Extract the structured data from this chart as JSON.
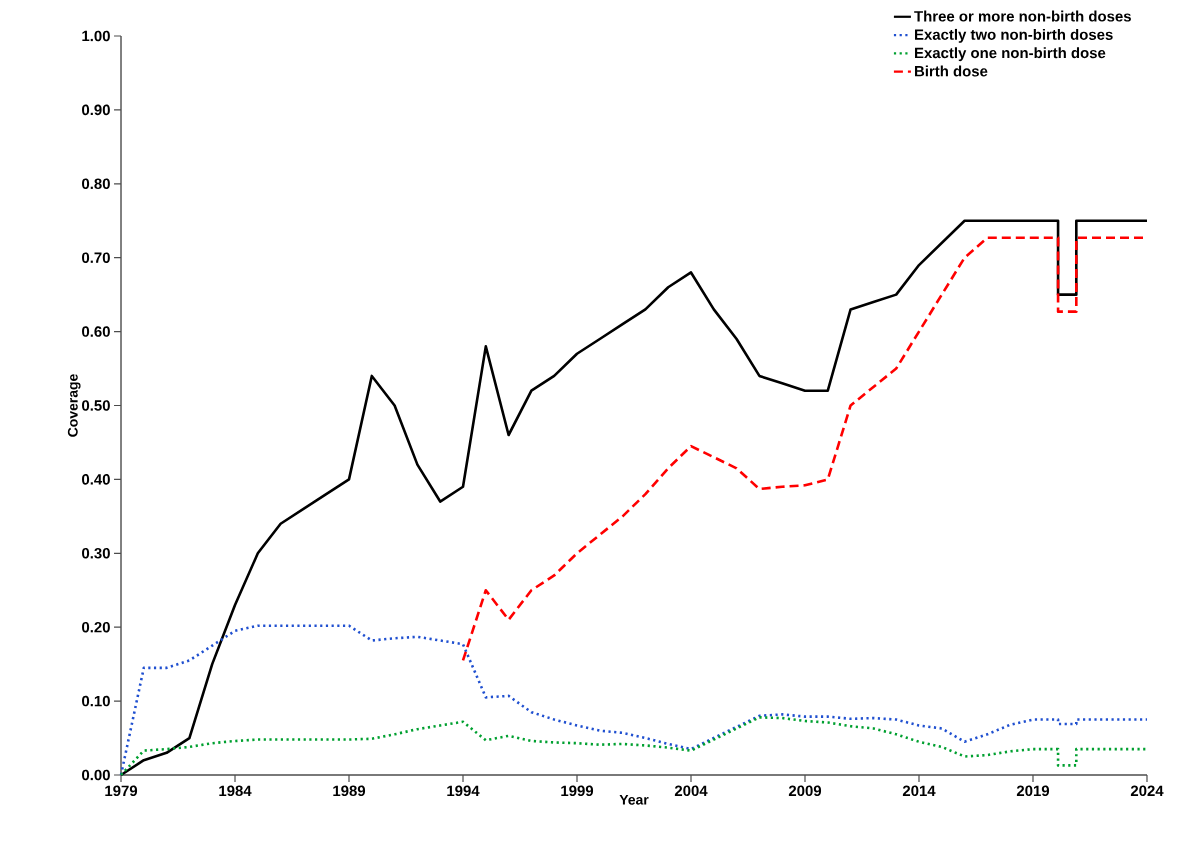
{
  "chart_data": {
    "type": "line",
    "xlabel": "Year",
    "ylabel": "Coverage",
    "xlim": [
      1979,
      2024
    ],
    "xticks": [
      1979,
      1984,
      1989,
      1994,
      1999,
      2004,
      2009,
      2014,
      2019,
      2024
    ],
    "ylim": [
      0,
      1
    ],
    "yticks": [
      {
        "value": 0,
        "label": "0.00"
      },
      {
        "value": 0.1,
        "label": "0.10"
      },
      {
        "value": 0.2,
        "label": "0.20"
      },
      {
        "value": 0.3,
        "label": "0.30"
      },
      {
        "value": 0.4,
        "label": "0.40"
      },
      {
        "value": 0.5,
        "label": "0.50"
      },
      {
        "value": 0.6,
        "label": "0.60"
      },
      {
        "value": 0.7,
        "label": "0.70"
      },
      {
        "value": 0.8,
        "label": "0.80"
      },
      {
        "value": 0.9,
        "label": "0.90"
      },
      {
        "value": 1,
        "label": "1.00"
      }
    ],
    "grid": false,
    "legend": "top right",
    "marker": "none",
    "series": [
      {
        "name": "Three or more non-birth doses",
        "color": "#000000",
        "line_style": "solid",
        "x": [
          1979,
          1980,
          1981,
          1982,
          1983,
          1984,
          1985,
          1986,
          1987,
          1988,
          1989,
          1990,
          1991,
          1992,
          1993,
          1994,
          1995,
          1996,
          1997,
          1998,
          1999,
          2000,
          2001,
          2002,
          2003,
          2004,
          2005,
          2006,
          2007,
          2008,
          2009,
          2010,
          2011,
          2012,
          2013,
          2014,
          2015,
          2016,
          2017,
          2018,
          2019,
          2020.1,
          2020.1,
          2020.9,
          2020.9,
          2022,
          2023,
          2024
        ],
        "values": [
          0,
          0.02,
          0.03,
          0.05,
          0.15,
          0.23,
          0.3,
          0.34,
          0.36,
          0.38,
          0.4,
          0.54,
          0.5,
          0.42,
          0.37,
          0.39,
          0.58,
          0.46,
          0.52,
          0.54,
          0.57,
          0.59,
          0.61,
          0.63,
          0.66,
          0.68,
          0.63,
          0.59,
          0.54,
          0.53,
          0.52,
          0.52,
          0.63,
          0.64,
          0.65,
          0.69,
          0.72,
          0.75,
          0.75,
          0.75,
          0.75,
          0.75,
          0.65,
          0.65,
          0.75,
          0.75,
          0.75,
          0.75
        ]
      },
      {
        "name": "Exactly two non-birth doses",
        "color": "#2050d0",
        "line_style": "dotted",
        "x": [
          1979,
          1980,
          1981,
          1982,
          1983,
          1984,
          1985,
          1986,
          1987,
          1988,
          1989,
          1990,
          1991,
          1992,
          1993,
          1994,
          1995,
          1996,
          1997,
          1998,
          1999,
          2000,
          2001,
          2002,
          2003,
          2004,
          2005,
          2006,
          2007,
          2008,
          2009,
          2010,
          2011,
          2012,
          2013,
          2014,
          2015,
          2016,
          2017,
          2018,
          2019,
          2020.1,
          2020.1,
          2020.9,
          2020.9,
          2022,
          2023,
          2024
        ],
        "values": [
          0,
          0.145,
          0.145,
          0.155,
          0.175,
          0.195,
          0.202,
          0.202,
          0.202,
          0.202,
          0.202,
          0.182,
          0.185,
          0.187,
          0.182,
          0.177,
          0.105,
          0.107,
          0.085,
          0.075,
          0.067,
          0.06,
          0.057,
          0.05,
          0.042,
          0.035,
          0.05,
          0.065,
          0.08,
          0.082,
          0.079,
          0.079,
          0.076,
          0.077,
          0.075,
          0.067,
          0.063,
          0.045,
          0.055,
          0.068,
          0.075,
          0.075,
          0.069,
          0.069,
          0.075,
          0.075,
          0.075,
          0.075
        ]
      },
      {
        "name": "Exactly one non-birth dose",
        "color": "#00a030",
        "line_style": "dotted",
        "x": [
          1979,
          1980,
          1981,
          1982,
          1983,
          1984,
          1985,
          1986,
          1987,
          1988,
          1989,
          1990,
          1991,
          1992,
          1993,
          1994,
          1995,
          1996,
          1997,
          1998,
          1999,
          2000,
          2001,
          2002,
          2003,
          2004,
          2005,
          2006,
          2007,
          2008,
          2009,
          2010,
          2011,
          2012,
          2013,
          2014,
          2015,
          2016,
          2017,
          2018,
          2019,
          2020.1,
          2020.1,
          2020.9,
          2020.9,
          2022,
          2023,
          2024
        ],
        "values": [
          0,
          0.033,
          0.035,
          0.038,
          0.043,
          0.046,
          0.048,
          0.048,
          0.048,
          0.048,
          0.048,
          0.049,
          0.055,
          0.062,
          0.067,
          0.072,
          0.047,
          0.053,
          0.046,
          0.044,
          0.043,
          0.041,
          0.042,
          0.04,
          0.037,
          0.033,
          0.048,
          0.063,
          0.078,
          0.077,
          0.073,
          0.071,
          0.066,
          0.063,
          0.055,
          0.045,
          0.038,
          0.025,
          0.027,
          0.032,
          0.035,
          0.035,
          0.013,
          0.013,
          0.035,
          0.035,
          0.035,
          0.035
        ]
      },
      {
        "name": "Birth dose",
        "color": "#ff0000",
        "line_style": "dashed",
        "x": [
          1994,
          1995,
          1996,
          1997,
          1998,
          1999,
          2000,
          2001,
          2002,
          2003,
          2004,
          2005,
          2006,
          2007,
          2008,
          2009,
          2010,
          2011,
          2012,
          2013,
          2014,
          2015,
          2016,
          2017,
          2018,
          2019,
          2020.1,
          2020.1,
          2020.9,
          2020.9,
          2022,
          2023,
          2024
        ],
        "values": [
          0.155,
          0.25,
          0.21,
          0.25,
          0.27,
          0.3,
          0.325,
          0.35,
          0.38,
          0.415,
          0.445,
          0.43,
          0.415,
          0.387,
          0.39,
          0.392,
          0.4,
          0.5,
          0.525,
          0.55,
          0.6,
          0.65,
          0.7,
          0.727,
          0.727,
          0.727,
          0.727,
          0.627,
          0.627,
          0.727,
          0.727,
          0.727,
          0.727
        ]
      }
    ]
  }
}
